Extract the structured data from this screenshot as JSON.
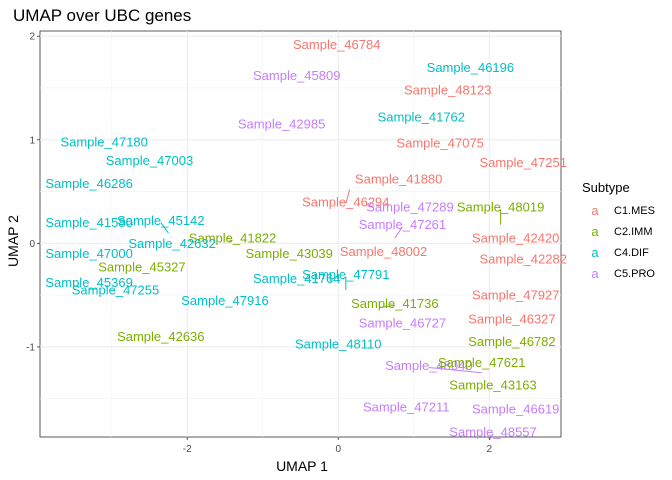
{
  "chart_data": {
    "type": "scatter",
    "title": "UMAP over UBC genes",
    "xlabel": "UMAP 1",
    "ylabel": "UMAP 2",
    "xlim": [
      -3.95,
      2.95
    ],
    "ylim": [
      -1.87,
      2.05
    ],
    "xticks": [
      -2,
      0,
      2
    ],
    "yticks": [
      -1,
      0,
      1,
      2
    ],
    "grid": true,
    "legend": {
      "title": "Subtype",
      "placement": "right",
      "key_glyph": "a",
      "entries": [
        {
          "name": "C1.MES",
          "color": "#F8766D"
        },
        {
          "name": "C2.IMM",
          "color": "#7CAE00"
        },
        {
          "name": "C4.DIF",
          "color": "#00BFC4"
        },
        {
          "name": "C5.PRO",
          "color": "#C77CFF"
        }
      ]
    },
    "points": [
      {
        "label": "Sample_46784",
        "subtype": "C1.MES",
        "x": -0.02,
        "y": 1.92
      },
      {
        "label": "Sample_45809",
        "subtype": "C5.PRO",
        "x": -0.55,
        "y": 1.62
      },
      {
        "label": "Sample_46196",
        "subtype": "C4.DIF",
        "x": 1.75,
        "y": 1.7
      },
      {
        "label": "Sample_48123",
        "subtype": "C1.MES",
        "x": 1.45,
        "y": 1.48
      },
      {
        "label": "Sample_41762",
        "subtype": "C4.DIF",
        "x": 1.1,
        "y": 1.22
      },
      {
        "label": "Sample_42985",
        "subtype": "C5.PRO",
        "x": -0.75,
        "y": 1.15
      },
      {
        "label": "Sample_47180",
        "subtype": "C4.DIF",
        "x": -3.1,
        "y": 0.98
      },
      {
        "label": "Sample_47075",
        "subtype": "C1.MES",
        "x": 1.35,
        "y": 0.97
      },
      {
        "label": "Sample_47003",
        "subtype": "C4.DIF",
        "x": -2.5,
        "y": 0.8
      },
      {
        "label": "Sample_47251",
        "subtype": "C1.MES",
        "x": 2.45,
        "y": 0.78
      },
      {
        "label": "Sample_46286",
        "subtype": "C4.DIF",
        "x": -3.3,
        "y": 0.58
      },
      {
        "label": "Sample_41880",
        "subtype": "C1.MES",
        "x": 0.8,
        "y": 0.62
      },
      {
        "label": "Sample_46294",
        "subtype": "C1.MES",
        "x": 0.1,
        "y": 0.4
      },
      {
        "label": "Sample_48019",
        "subtype": "C2.IMM",
        "x": 2.15,
        "y": 0.35
      },
      {
        "label": "Sample_45142",
        "subtype": "C4.DIF",
        "x": -2.35,
        "y": 0.22
      },
      {
        "label": "Sample_47289",
        "subtype": "C5.PRO",
        "x": 0.95,
        "y": 0.35
      },
      {
        "label": "Sample_41580",
        "subtype": "C4.DIF",
        "x": -3.3,
        "y": 0.2
      },
      {
        "label": "Sample_41822",
        "subtype": "C2.IMM",
        "x": -1.4,
        "y": 0.05
      },
      {
        "label": "Sample_47261",
        "subtype": "C5.PRO",
        "x": 0.85,
        "y": 0.18
      },
      {
        "label": "Sample_42632",
        "subtype": "C4.DIF",
        "x": -2.2,
        "y": 0.0
      },
      {
        "label": "Sample_42420",
        "subtype": "C1.MES",
        "x": 2.35,
        "y": 0.05
      },
      {
        "label": "Sample_47000",
        "subtype": "C4.DIF",
        "x": -3.3,
        "y": -0.1
      },
      {
        "label": "Sample_43039",
        "subtype": "C2.IMM",
        "x": -0.65,
        "y": -0.1
      },
      {
        "label": "Sample_48002",
        "subtype": "C1.MES",
        "x": 0.6,
        "y": -0.08
      },
      {
        "label": "Sample_42282",
        "subtype": "C1.MES",
        "x": 2.45,
        "y": -0.15
      },
      {
        "label": "Sample_45327",
        "subtype": "C2.IMM",
        "x": -2.6,
        "y": -0.23
      },
      {
        "label": "Sample_47791",
        "subtype": "C4.DIF",
        "x": 0.1,
        "y": -0.3
      },
      {
        "label": "Sample_41764",
        "subtype": "C4.DIF",
        "x": -0.55,
        "y": -0.34
      },
      {
        "label": "Sample_45369",
        "subtype": "C4.DIF",
        "x": -3.3,
        "y": -0.38
      },
      {
        "label": "Sample_47255",
        "subtype": "C4.DIF",
        "x": -2.95,
        "y": -0.45
      },
      {
        "label": "Sample_47927",
        "subtype": "C1.MES",
        "x": 2.35,
        "y": -0.5
      },
      {
        "label": "Sample_47916",
        "subtype": "C4.DIF",
        "x": -1.5,
        "y": -0.55
      },
      {
        "label": "Sample_41736",
        "subtype": "C2.IMM",
        "x": 0.75,
        "y": -0.58
      },
      {
        "label": "Sample_46327",
        "subtype": "C1.MES",
        "x": 2.3,
        "y": -0.73
      },
      {
        "label": "Sample_46727",
        "subtype": "C5.PRO",
        "x": 0.85,
        "y": -0.77
      },
      {
        "label": "Sample_42636",
        "subtype": "C2.IMM",
        "x": -2.35,
        "y": -0.9
      },
      {
        "label": "Sample_48110",
        "subtype": "C4.DIF",
        "x": 0.0,
        "y": -0.97
      },
      {
        "label": "Sample_46782",
        "subtype": "C2.IMM",
        "x": 2.3,
        "y": -0.95
      },
      {
        "label": "Sample_48040",
        "subtype": "C5.PRO",
        "x": 1.2,
        "y": -1.18
      },
      {
        "label": "Sample_47621",
        "subtype": "C2.IMM",
        "x": 1.9,
        "y": -1.15
      },
      {
        "label": "Sample_43163",
        "subtype": "C2.IMM",
        "x": 2.05,
        "y": -1.37
      },
      {
        "label": "Sample_47211",
        "subtype": "C5.PRO",
        "x": 0.9,
        "y": -1.58
      },
      {
        "label": "Sample_46619",
        "subtype": "C5.PRO",
        "x": 2.35,
        "y": -1.6
      },
      {
        "label": "Sample_48557",
        "subtype": "C5.PRO",
        "x": 2.05,
        "y": -1.82
      }
    ]
  }
}
